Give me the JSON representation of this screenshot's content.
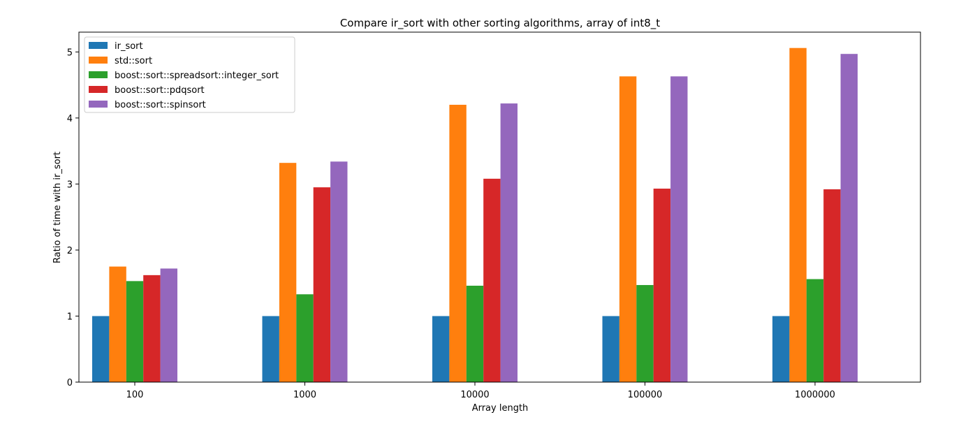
{
  "chart_data": {
    "type": "bar",
    "title": "Compare ir_sort with other sorting algorithms, array of int8_t",
    "xlabel": "Array length",
    "ylabel": "Ratio of time with ir_sort",
    "categories": [
      "100",
      "1000",
      "10000",
      "100000",
      "1000000"
    ],
    "ylim": [
      0,
      5.3
    ],
    "yticks": [
      0,
      1,
      2,
      3,
      4,
      5
    ],
    "grid": false,
    "legend_position": "upper-left",
    "series": [
      {
        "name": "ir_sort",
        "color": "#1f77b4",
        "values": [
          1.0,
          1.0,
          1.0,
          1.0,
          1.0
        ]
      },
      {
        "name": "std::sort",
        "color": "#ff7f0e",
        "values": [
          1.75,
          3.32,
          4.2,
          4.63,
          5.06
        ]
      },
      {
        "name": "boost::sort::spreadsort::integer_sort",
        "color": "#2ca02c",
        "values": [
          1.53,
          1.33,
          1.46,
          1.47,
          1.56
        ]
      },
      {
        "name": "boost::sort::pdqsort",
        "color": "#d62728",
        "values": [
          1.62,
          2.95,
          3.08,
          2.93,
          2.92
        ]
      },
      {
        "name": "boost::sort::spinsort",
        "color": "#9467bd",
        "values": [
          1.72,
          3.34,
          4.22,
          4.63,
          4.97
        ]
      }
    ]
  }
}
